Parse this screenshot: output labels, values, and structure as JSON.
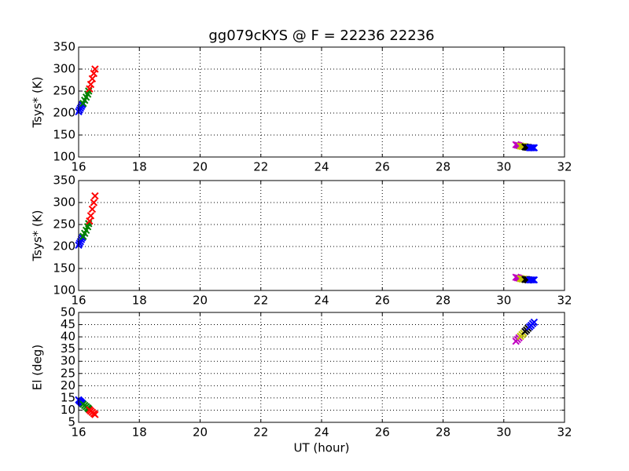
{
  "chart_data": [
    {
      "type": "scatter",
      "title": "gg079cKYS @ F = 22236 22236",
      "y_label": "Tsys* (K)",
      "xlim": [
        16,
        32
      ],
      "xticks": [
        16,
        18,
        20,
        22,
        24,
        26,
        28,
        30,
        32
      ],
      "ylim": [
        100,
        350
      ],
      "yticks": [
        100,
        150,
        200,
        250,
        300,
        350
      ],
      "grid": true,
      "marker": "x",
      "series": [
        {
          "color": "#0000ff",
          "x": [
            16.0,
            16.03,
            16.06,
            16.09,
            16.12
          ],
          "values": [
            203,
            207,
            211,
            215,
            219
          ]
        },
        {
          "color": "#008000",
          "x": [
            16.15,
            16.2,
            16.25,
            16.3,
            16.33
          ],
          "values": [
            222,
            229,
            236,
            243,
            250
          ]
        },
        {
          "color": "#ff0000",
          "x": [
            16.36,
            16.4,
            16.45,
            16.5,
            16.54
          ],
          "values": [
            255,
            265,
            278,
            290,
            300
          ]
        },
        {
          "color": "#bf00bf",
          "x": [
            30.4,
            30.45,
            30.5
          ],
          "values": [
            128,
            127,
            126
          ]
        },
        {
          "color": "#bfbf00",
          "x": [
            30.55,
            30.6,
            30.65
          ],
          "values": [
            125,
            124,
            124
          ]
        },
        {
          "color": "#000000",
          "x": [
            30.7,
            30.75,
            30.8
          ],
          "values": [
            123,
            122,
            122
          ]
        },
        {
          "color": "#0000ff",
          "x": [
            30.85,
            30.9,
            30.95,
            31.0
          ],
          "values": [
            121,
            121,
            121,
            121
          ]
        }
      ]
    },
    {
      "type": "scatter",
      "y_label": "Tsys* (K)",
      "xlim": [
        16,
        32
      ],
      "xticks": [
        16,
        18,
        20,
        22,
        24,
        26,
        28,
        30,
        32
      ],
      "ylim": [
        100,
        350
      ],
      "yticks": [
        100,
        150,
        200,
        250,
        300,
        350
      ],
      "grid": true,
      "marker": "x",
      "series": [
        {
          "color": "#0000ff",
          "x": [
            16.0,
            16.03,
            16.06,
            16.09,
            16.12
          ],
          "values": [
            203,
            207,
            211,
            216,
            220
          ]
        },
        {
          "color": "#008000",
          "x": [
            16.15,
            16.2,
            16.25,
            16.3,
            16.33
          ],
          "values": [
            223,
            230,
            237,
            245,
            252
          ]
        },
        {
          "color": "#ff0000",
          "x": [
            16.36,
            16.4,
            16.45,
            16.5,
            16.54
          ],
          "values": [
            258,
            270,
            285,
            300,
            315
          ]
        },
        {
          "color": "#bf00bf",
          "x": [
            30.4,
            30.45,
            30.5
          ],
          "values": [
            130,
            129,
            128
          ]
        },
        {
          "color": "#bfbf00",
          "x": [
            30.55,
            30.6,
            30.65
          ],
          "values": [
            127,
            126,
            126
          ]
        },
        {
          "color": "#000000",
          "x": [
            30.7,
            30.75,
            30.8
          ],
          "values": [
            125,
            125,
            124
          ]
        },
        {
          "color": "#0000ff",
          "x": [
            30.85,
            30.9,
            30.95,
            31.0
          ],
          "values": [
            124,
            124,
            124,
            124
          ]
        }
      ]
    },
    {
      "type": "scatter",
      "x_label": "UT (hour)",
      "y_label": "El (deg)",
      "xlim": [
        16,
        32
      ],
      "xticks": [
        16,
        18,
        20,
        22,
        24,
        26,
        28,
        30,
        32
      ],
      "ylim": [
        5,
        50
      ],
      "yticks": [
        5,
        10,
        15,
        20,
        25,
        30,
        35,
        40,
        45,
        50
      ],
      "grid": true,
      "marker": "x",
      "series": [
        {
          "color": "#0000ff",
          "x": [
            16.0,
            16.03,
            16.06,
            16.09,
            16.12
          ],
          "values": [
            14.2,
            13.8,
            13.5,
            13.1,
            12.8
          ]
        },
        {
          "color": "#008000",
          "x": [
            16.15,
            16.2,
            16.25,
            16.3,
            16.33
          ],
          "values": [
            12.4,
            11.9,
            11.4,
            10.9,
            10.5
          ]
        },
        {
          "color": "#ff0000",
          "x": [
            16.36,
            16.4,
            16.45,
            16.5,
            16.54
          ],
          "values": [
            10.1,
            9.6,
            9.1,
            8.6,
            8.2
          ]
        },
        {
          "color": "#bf00bf",
          "x": [
            30.4,
            30.45,
            30.5
          ],
          "values": [
            38.2,
            38.9,
            39.6
          ]
        },
        {
          "color": "#bfbf00",
          "x": [
            30.55,
            30.6,
            30.65
          ],
          "values": [
            40.2,
            40.9,
            41.5
          ]
        },
        {
          "color": "#000000",
          "x": [
            30.7,
            30.75,
            30.8
          ],
          "values": [
            42.2,
            42.8,
            43.5
          ]
        },
        {
          "color": "#0000ff",
          "x": [
            30.85,
            30.9,
            30.95,
            31.0
          ],
          "values": [
            44.1,
            44.7,
            45.4,
            46.0
          ]
        }
      ]
    }
  ]
}
